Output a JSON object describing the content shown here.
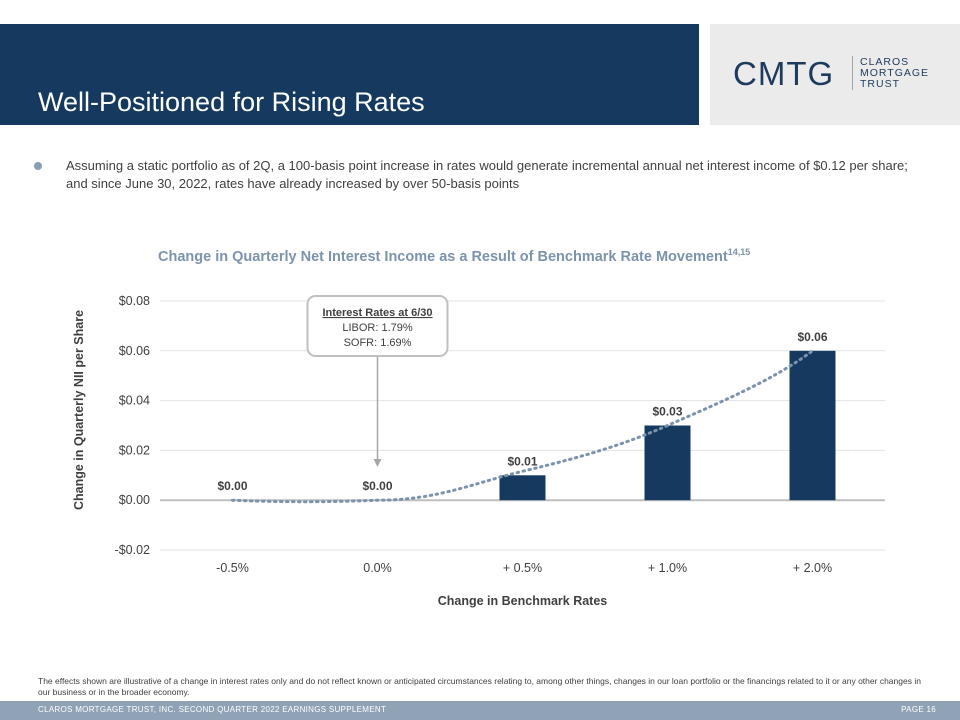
{
  "slide": {
    "title": "Well-Positioned for Rising Rates",
    "bullet": "Assuming a static portfolio as of 2Q, a 100-basis point increase in rates would generate incremental annual net interest income of $0.12 per share; and since June 30, 2022, rates have already increased by over 50-basis points",
    "note": "The effects shown are illustrative of a change in interest rates only and do not reflect known or anticipated circumstances relating to, among other things, changes in our loan portfolio or the financings related to it or any other changes in our business or in the broader economy.",
    "footer_left": "CLAROS MORTGAGE TRUST, INC. SECOND QUARTER 2022 EARNINGS SUPPLEMENT",
    "footer_right": "PAGE 16"
  },
  "logo": {
    "main": "CMTG",
    "line1": "CLAROS",
    "line2": "MORTGAGE",
    "line3": "TRUST"
  },
  "colors": {
    "header": "#163a5f",
    "bar": "#163a5f",
    "trend": "#7b93ac",
    "footer": "#8fa2b6"
  },
  "chart_data": {
    "type": "bar",
    "title": "Change in Quarterly Net Interest Income as a Result of Benchmark Rate Movement",
    "title_superscript": "14,15",
    "xlabel": "Change in Benchmark Rates",
    "ylabel": "Change in Quarterly NII per Share",
    "categories": [
      "-0.5%",
      "0.0%",
      "+ 0.5%",
      "+ 1.0%",
      "+ 2.0%"
    ],
    "values": [
      0.0,
      0.0,
      0.01,
      0.03,
      0.06
    ],
    "data_labels": [
      "$0.00",
      "$0.00",
      "$0.01",
      "$0.03",
      "$0.06"
    ],
    "yticks": [
      -0.02,
      0.0,
      0.02,
      0.04,
      0.06,
      0.08
    ],
    "ytick_labels": [
      "-$0.02",
      "$0.00",
      "$0.02",
      "$0.04",
      "$0.06",
      "$0.08"
    ],
    "ylim": [
      -0.02,
      0.08
    ],
    "grid": true,
    "trendline": "dotted",
    "callout": {
      "category": "0.0%",
      "title": "Interest Rates at 6/30",
      "line1": "LIBOR: 1.79%",
      "line2": "SOFR: 1.69%"
    }
  }
}
